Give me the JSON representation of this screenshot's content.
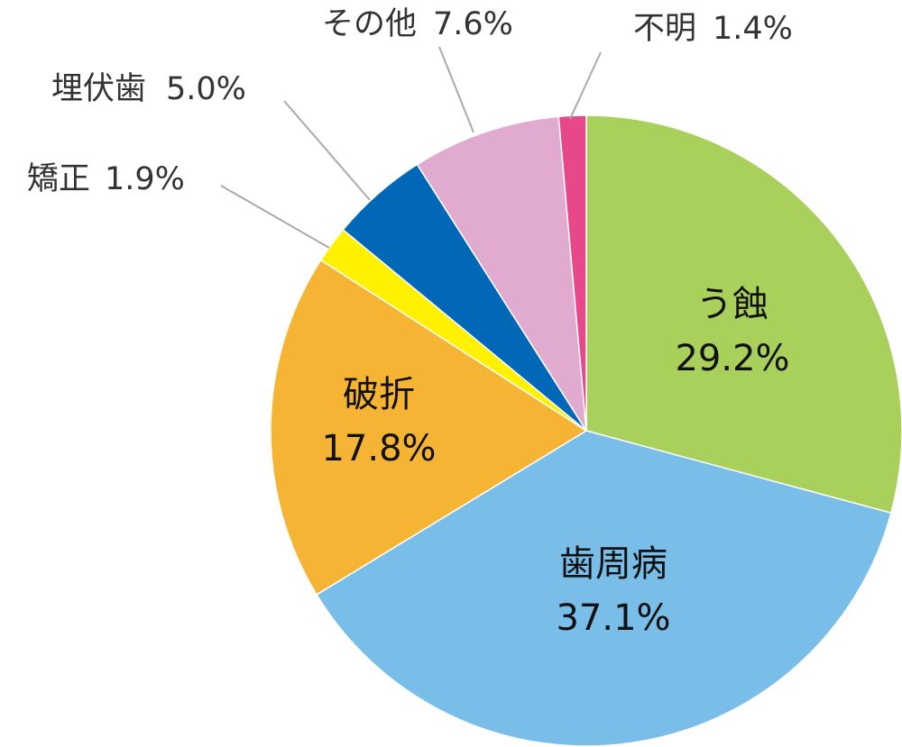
{
  "chart_data": {
    "type": "pie",
    "categories": [
      "う蝕",
      "歯周病",
      "破折",
      "矯正",
      "埋伏歯",
      "その他",
      "不明"
    ],
    "values": [
      29.2,
      37.1,
      17.8,
      1.9,
      5.0,
      7.6,
      1.4
    ],
    "value_labels": [
      "29.2%",
      "37.1%",
      "17.8%",
      "1.9%",
      "5.0%",
      "7.6%",
      "1.4%"
    ],
    "colors": [
      "#a9d05b",
      "#79bde9",
      "#f6b434",
      "#fff100",
      "#0068b6",
      "#e0abcf",
      "#e8488a"
    ]
  }
}
